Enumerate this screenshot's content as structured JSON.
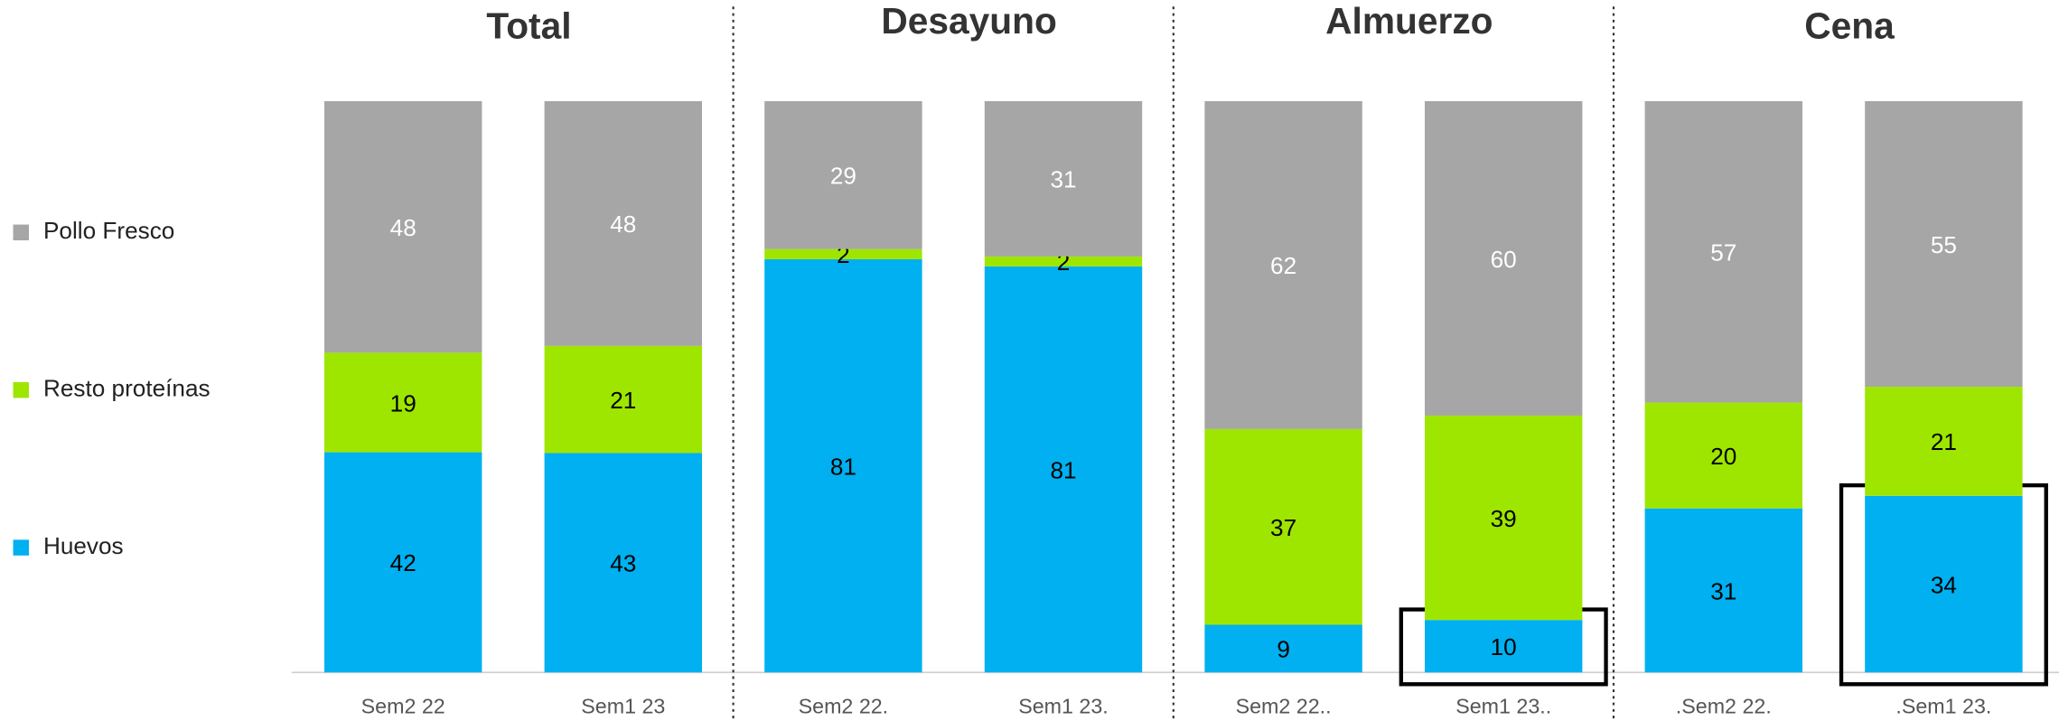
{
  "chart_data": {
    "type": "bar",
    "stacking": "percent",
    "groups": [
      "Total",
      "Desayuno",
      "Almuerzo",
      "Cena"
    ],
    "categories": [
      "Sem2 22",
      "Sem1 23",
      "Sem2 22.",
      "Sem1 23.",
      "Sem2 22..",
      "Sem1 23..",
      ".Sem2 22.",
      ".Sem1 23."
    ],
    "series": [
      {
        "name": "Huevos",
        "color": "#00b0f0",
        "label_color": "#000000",
        "values": [
          42,
          43,
          81,
          81,
          9,
          10,
          31,
          34
        ]
      },
      {
        "name": "Resto proteínas",
        "color": "#9ee600",
        "label_color": "#000000",
        "values": [
          19,
          21,
          2,
          2,
          37,
          39,
          20,
          21
        ]
      },
      {
        "name": "Pollo Fresco",
        "color": "#a6a6a6",
        "label_color": "#ffffff",
        "values": [
          48,
          48,
          29,
          31,
          62,
          60,
          57,
          55
        ]
      }
    ],
    "highlighted": [
      5,
      7
    ]
  }
}
